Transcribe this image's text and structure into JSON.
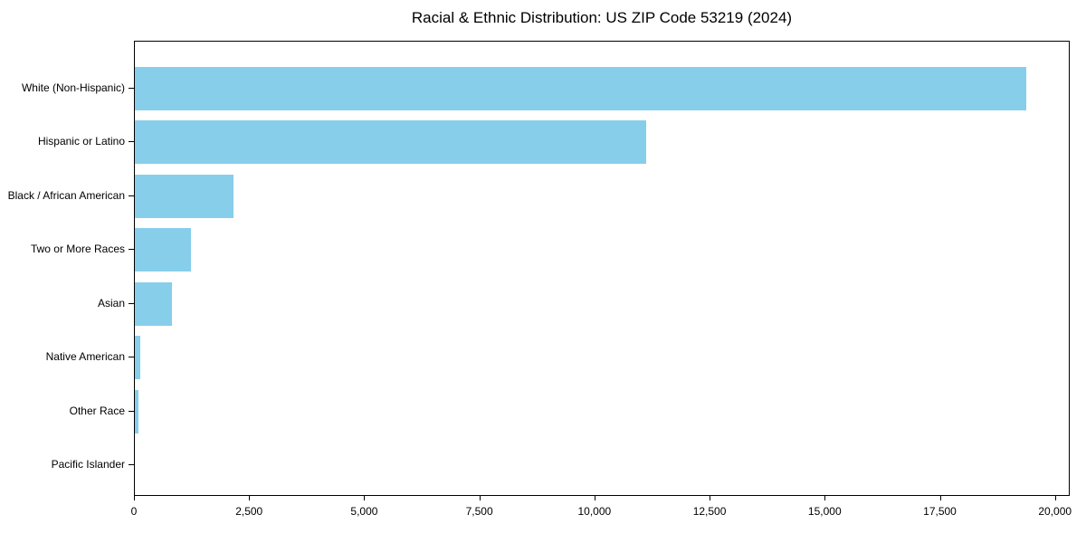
{
  "chart_data": {
    "type": "bar",
    "orientation": "horizontal",
    "title": "Racial & Ethnic Distribution: US ZIP Code 53219 (2024)",
    "categories": [
      "White (Non-Hispanic)",
      "Hispanic or Latino",
      "Black / African American",
      "Two or More Races",
      "Asian",
      "Native American",
      "Other Race",
      "Pacific Islander"
    ],
    "values": [
      19350,
      11100,
      2140,
      1220,
      810,
      125,
      85,
      0
    ],
    "xlabel": "",
    "ylabel": "",
    "xlim": [
      0,
      20320
    ],
    "xticks": [
      0,
      2500,
      5000,
      7500,
      10000,
      12500,
      15000,
      17500,
      20000
    ],
    "xtick_labels": [
      "0",
      "2,500",
      "5,000",
      "7,500",
      "10,000",
      "12,500",
      "15,000",
      "17,500",
      "20,000"
    ],
    "bar_color": "#87CEEB",
    "axis_color": "#000000",
    "background_color": "#ffffff",
    "grid": false,
    "legend": null,
    "value_labels_shown": false
  }
}
